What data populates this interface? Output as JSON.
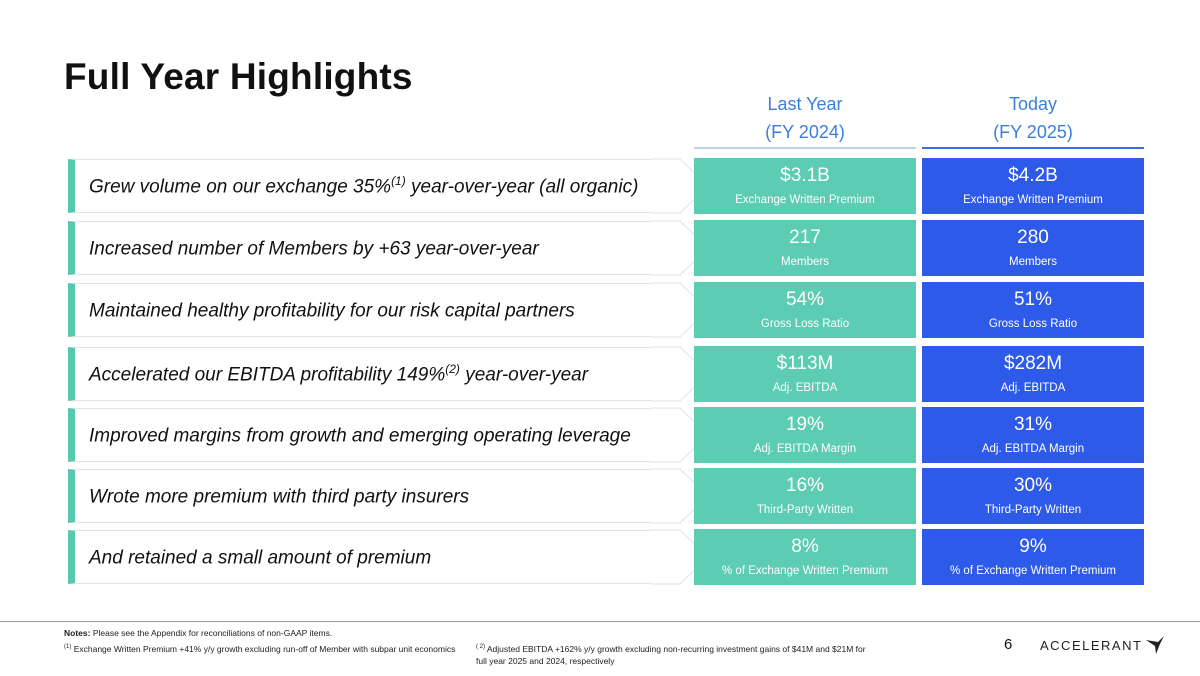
{
  "page": {
    "title": "Full Year Highlights",
    "page_number": "6"
  },
  "columns": {
    "last_year": {
      "line1": "Last Year",
      "line2": "(FY 2024)"
    },
    "today": {
      "line1": "Today",
      "line2": "(FY 2025)"
    }
  },
  "rows": [
    {
      "pre": "Grew volume on our exchange 35%",
      "sup": "(1)",
      "post": " year-over-year (all organic)",
      "ly_value": "$3.1B",
      "ly_label": "Exchange Written Premium",
      "td_value": "$4.2B",
      "td_label": "Exchange Written Premium"
    },
    {
      "pre": "Increased number of Members by +63 year-over-year",
      "sup": "",
      "post": "",
      "ly_value": "217",
      "ly_label": "Members",
      "td_value": "280",
      "td_label": "Members"
    },
    {
      "pre": "Maintained healthy profitability for our risk capital partners",
      "sup": "",
      "post": "",
      "ly_value": "54%",
      "ly_label": "Gross Loss Ratio",
      "td_value": "51%",
      "td_label": "Gross Loss Ratio"
    },
    {
      "pre": "Accelerated our EBITDA profitability 149%",
      "sup": "(2)",
      "post": " year-over-year",
      "ly_value": "$113M",
      "ly_label": "Adj. EBITDA",
      "td_value": "$282M",
      "td_label": "Adj. EBITDA"
    },
    {
      "pre": "Improved margins from growth and emerging operating leverage",
      "sup": "",
      "post": "",
      "ly_value": "19%",
      "ly_label": "Adj. EBITDA Margin",
      "td_value": "31%",
      "td_label": "Adj. EBITDA Margin"
    },
    {
      "pre": "Wrote more premium with third party insurers",
      "sup": "",
      "post": "",
      "ly_value": "16%",
      "ly_label": "Third-Party Written",
      "td_value": "30%",
      "td_label": "Third-Party Written"
    },
    {
      "pre": "And retained a small amount of premium",
      "sup": "",
      "post": "",
      "ly_value": "8%",
      "ly_label": "% of Exchange Written Premium",
      "td_value": "9%",
      "td_label": "% of Exchange Written Premium"
    }
  ],
  "footer": {
    "notes_label": "Notes:",
    "notes_text": " Please see the Appendix for reconciliations of non-GAAP items.",
    "fn1_sup": "(1)",
    "fn1_text": " Exchange Written Premium +41% y/y growth excluding run-off of Member with subpar unit economics",
    "fn2_sup": "( 2)",
    "fn2_text": " Adjusted EBITDA +162% y/y growth excluding non-recurring investment gains of $41M and $21M for full year 2025 and 2024, respectively",
    "logo_text": "ACCELERANT"
  },
  "colors": {
    "last_year_fill": "#5cccb3",
    "today_fill": "#2d5ae8",
    "accent_bar": "#56c9b0",
    "header_text": "#3a7fd8"
  }
}
